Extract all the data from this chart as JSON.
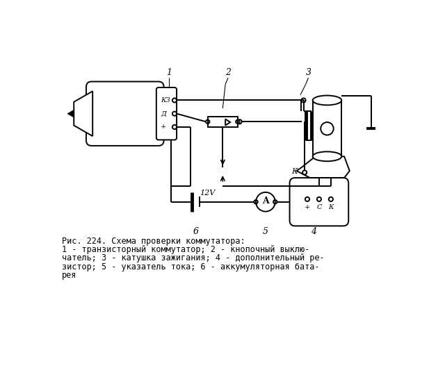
{
  "bg_color": "#ffffff",
  "line_color": "#000000",
  "title_line1": "Рис. 224. Схема проверки коммутатора:",
  "title_line2": "1 - транзисторный коммутатор; 2 - кнопочный выклю-",
  "title_line3": "чатель; 3 - катушка зажигания; 4 - дополнительный ре-",
  "title_line4": "зистор; 5 - указатель тока; 6 - аккумуляторная бата-",
  "title_line5": "рея",
  "label1": "1",
  "label2": "2",
  "label3": "3",
  "label4": "4",
  "label5": "5",
  "label6": "6",
  "kz_label": "КЗ",
  "d_label": "Д",
  "plus_label": "+",
  "voltage_label": "12V",
  "k_label": "К",
  "c_label": "С",
  "plus2_label": "+"
}
